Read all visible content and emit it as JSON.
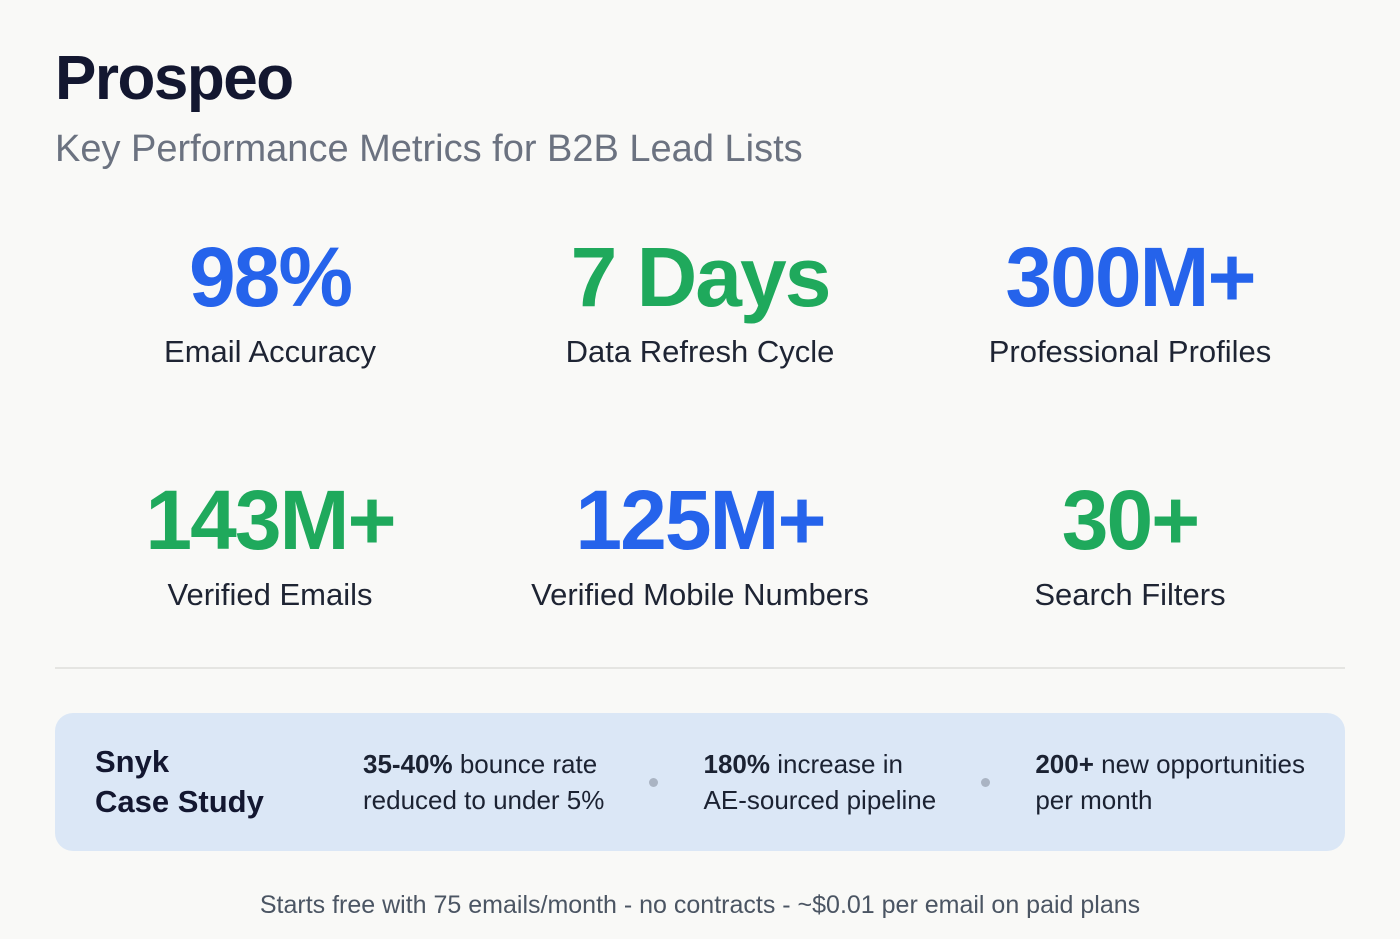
{
  "header": {
    "title": "Prospeo",
    "subtitle": "Key Performance Metrics for B2B Lead Lists"
  },
  "metrics": [
    {
      "value": "98%",
      "label": "Email Accuracy",
      "color": "#2563eb"
    },
    {
      "value": "7 Days",
      "label": "Data Refresh Cycle",
      "color": "#1fa95c"
    },
    {
      "value": "300M+",
      "label": "Professional Profiles",
      "color": "#2563eb"
    },
    {
      "value": "143M+",
      "label": "Verified Emails",
      "color": "#1fa95c"
    },
    {
      "value": "125M+",
      "label": "Verified Mobile Numbers",
      "color": "#2563eb"
    },
    {
      "value": "30+",
      "label": "Search Filters",
      "color": "#1fa95c"
    }
  ],
  "case_study": {
    "heading_line1": "Snyk",
    "heading_line2": "Case Study",
    "stats": [
      {
        "bold": "35-40%",
        "rest": " bounce rate",
        "line2": "reduced to under 5%"
      },
      {
        "bold": "180%",
        "rest": " increase in",
        "line2": "AE-sourced pipeline"
      },
      {
        "bold": "200+",
        "rest": " new opportunities",
        "line2": "per month"
      }
    ]
  },
  "footer": {
    "text": "Starts free with 75 emails/month - no contracts - ~$0.01 per email on paid plans"
  },
  "chart_data": {
    "type": "table",
    "title": "Prospeo",
    "subtitle": "Key Performance Metrics for B2B Lead Lists",
    "metrics": [
      {
        "label": "Email Accuracy",
        "value": "98%"
      },
      {
        "label": "Data Refresh Cycle",
        "value": "7 Days"
      },
      {
        "label": "Professional Profiles",
        "value": "300M+"
      },
      {
        "label": "Verified Emails",
        "value": "143M+"
      },
      {
        "label": "Verified Mobile Numbers",
        "value": "125M+"
      },
      {
        "label": "Search Filters",
        "value": "30+"
      }
    ],
    "case_study": {
      "name": "Snyk Case Study",
      "results": [
        "35-40% bounce rate reduced to under 5%",
        "180% increase in AE-sourced pipeline",
        "200+ new opportunities per month"
      ]
    },
    "footnote": "Starts free with 75 emails/month - no contracts - ~$0.01 per email on paid plans"
  }
}
